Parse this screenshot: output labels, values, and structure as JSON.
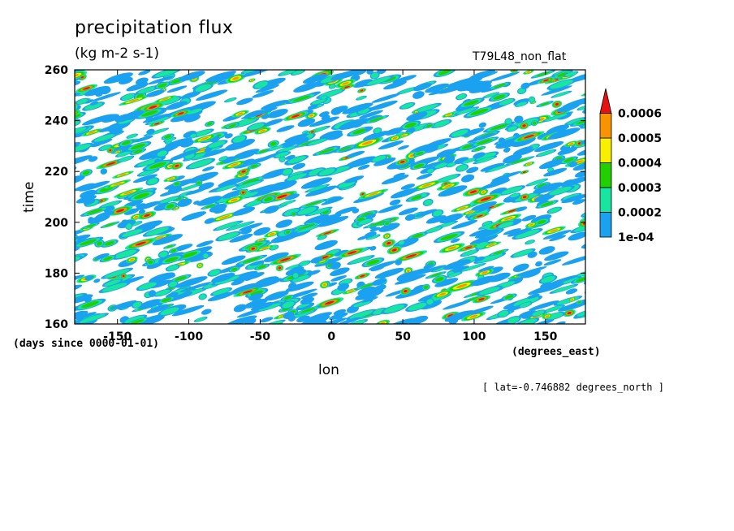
{
  "chart_data": {
    "type": "heatmap",
    "title": "precipitation flux",
    "units": "(kg m-2 s-1)",
    "run_label": "T79L48_non_flat",
    "xlabel": "lon",
    "ylabel": "time",
    "x_units": "(degrees_east)",
    "y_units": "(days since 0000-01-01)",
    "xlim": [
      -180,
      178
    ],
    "ylim": [
      160,
      260
    ],
    "x_ticks": [
      -150,
      -100,
      -50,
      0,
      50,
      100,
      150
    ],
    "y_ticks": [
      160,
      180,
      200,
      220,
      240,
      260
    ],
    "colorbar": {
      "levels": [
        "1e-04",
        "0.0002",
        "0.0003",
        "0.0004",
        "0.0005",
        "0.0006"
      ],
      "colors": [
        "#1aa2f0",
        "#18e6a0",
        "#22d000",
        "#f8f000",
        "#f89400",
        "#e81010"
      ],
      "extend": "max"
    },
    "pattern": "eastward-propagating streaks (slope approx 10 degrees per day)",
    "footnote": "[ lat=-0.746882 degrees_north ]"
  }
}
